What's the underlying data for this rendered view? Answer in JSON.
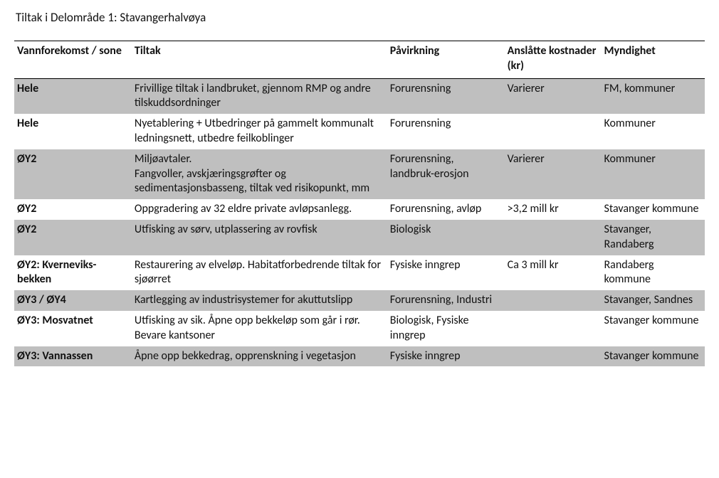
{
  "title": "Tiltak i Delområde 1: Stavangerhalvøya",
  "table": {
    "columns": [
      "Vannforekomst / sone",
      "Tiltak",
      "Påvirkning",
      "Anslåtte kostnader (kr)",
      "Myndighet"
    ],
    "column_widths_pct": [
      17,
      37,
      17,
      14,
      15
    ],
    "header_border_color": "#000000",
    "shaded_color": "#bfbfbf",
    "background_color": "#ffffff",
    "font_family": "Calibri",
    "font_size_pt": 12,
    "rows": [
      {
        "shaded": true,
        "zone": "Hele",
        "tiltak": "Frivillige tiltak i landbruket, gjennom RMP og andre tilskuddsordninger",
        "pavirkning": "Forurensning",
        "kostnader": "Varierer",
        "myndighet": "FM, kommuner"
      },
      {
        "shaded": false,
        "zone": "Hele",
        "tiltak": "Nyetablering + Utbedringer på gammelt kommunalt ledningsnett, utbedre feilkoblinger",
        "pavirkning": "Forurensning",
        "kostnader": "",
        "myndighet": "Kommuner"
      },
      {
        "shaded": true,
        "zone": "ØY2",
        "tiltak": "Miljøavtaler.\nFangvoller, avskjæringsgrøfter og sedimentasjonsbasseng, tiltak ved risikopunkt, mm",
        "pavirkning": "Forurensning, landbruk-erosjon",
        "kostnader": "Varierer",
        "myndighet": "Kommuner"
      },
      {
        "shaded": false,
        "zone": "ØY2",
        "tiltak": "Oppgradering av 32 eldre private avløpsanlegg.",
        "pavirkning": "Forurensning, avløp",
        "kostnader": ">3,2 mill kr",
        "myndighet": "Stavanger kommune"
      },
      {
        "shaded": true,
        "zone": "ØY2",
        "tiltak": "Utfisking av sørv, utplassering av rovfisk",
        "pavirkning": "Biologisk",
        "kostnader": "",
        "myndighet": "Stavanger, Randaberg"
      },
      {
        "shaded": false,
        "zone": "ØY2: Kverneviks-bekken",
        "tiltak": "Restaurering av elveløp. Habitatforbedrende tiltak for sjøørret",
        "pavirkning": "Fysiske inngrep",
        "kostnader": "Ca 3 mill kr",
        "myndighet": "Randaberg kommune"
      },
      {
        "shaded": true,
        "zone": "ØY3 / ØY4",
        "tiltak": "Kartlegging av industrisystemer for akuttutslipp",
        "pavirkning": "Forurensning, Industri",
        "kostnader": "",
        "myndighet": "Stavanger, Sandnes"
      },
      {
        "shaded": false,
        "zone": "ØY3: Mosvatnet",
        "tiltak": "Utfisking av sik. Åpne opp bekkeløp som går i rør. Bevare kantsoner",
        "pavirkning": "Biologisk, Fysiske inngrep",
        "kostnader": "",
        "myndighet": "Stavanger kommune"
      },
      {
        "shaded": true,
        "zone": "ØY3: Vannassen",
        "tiltak": "Åpne opp bekkedrag, opprenskning i vegetasjon",
        "pavirkning": "Fysiske inngrep",
        "kostnader": "",
        "myndighet": "Stavanger kommune"
      }
    ]
  }
}
